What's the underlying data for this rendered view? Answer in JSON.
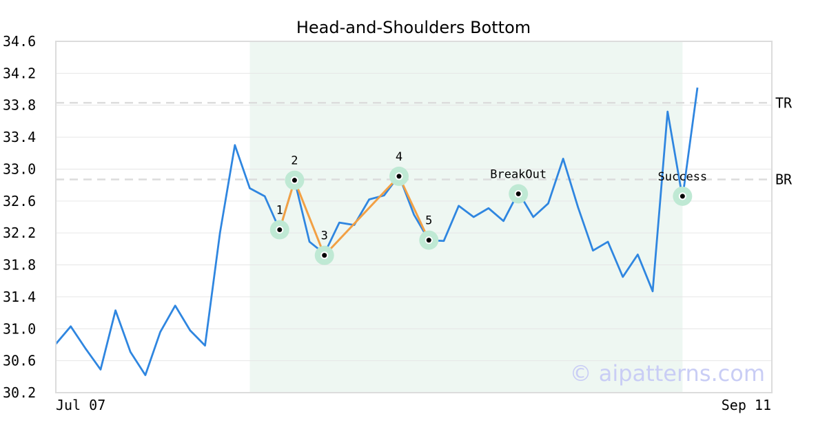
{
  "chart_data": {
    "type": "line",
    "title": "Head-and-Shoulders Bottom",
    "xlabel": "",
    "ylabel": "",
    "x_tick_labels": [
      {
        "index": 0,
        "label": "Jul 07"
      },
      {
        "index": 43,
        "label": "Sep 11"
      }
    ],
    "ylim": [
      30.2,
      34.6
    ],
    "yticks": [
      30.2,
      30.6,
      31.0,
      31.4,
      31.8,
      32.2,
      32.6,
      33.0,
      33.4,
      33.8,
      34.2,
      34.6
    ],
    "grid": true,
    "series": [
      {
        "values": [
          30.81,
          31.03,
          30.75,
          30.49,
          31.23,
          30.71,
          30.42,
          30.96,
          31.29,
          30.98,
          30.79,
          32.2,
          33.3,
          32.76,
          32.66,
          32.24,
          32.86,
          32.09,
          31.94,
          32.33,
          32.3,
          32.62,
          32.67,
          32.92,
          32.43,
          32.11,
          32.1,
          32.54,
          32.4,
          32.51,
          32.35,
          32.71,
          32.4,
          32.57,
          33.13,
          32.52,
          31.98,
          32.09,
          31.65,
          31.93,
          31.47,
          33.72,
          32.64,
          34.02
        ],
        "color": "#2f86e0"
      }
    ],
    "highlight_range": {
      "start": 13,
      "end": 42,
      "color": "#eef7f2"
    },
    "reference_lines": [
      {
        "label": "TR",
        "value": 33.83
      },
      {
        "label": "BR",
        "value": 32.87
      }
    ],
    "pattern": {
      "color": "#f2a044",
      "points": [
        {
          "label": "1",
          "index": 15,
          "value": 32.24
        },
        {
          "label": "2",
          "index": 16,
          "value": 32.86
        },
        {
          "label": "3",
          "index": 18,
          "value": 31.92
        },
        {
          "label": "4",
          "index": 23,
          "value": 32.91
        },
        {
          "label": "5",
          "index": 25,
          "value": 32.11
        }
      ]
    },
    "events": [
      {
        "label": "BreakOut",
        "index": 31,
        "value": 32.69
      },
      {
        "label": "Success",
        "index": 42,
        "value": 32.66
      }
    ],
    "watermark": "© aipatterns.com"
  }
}
